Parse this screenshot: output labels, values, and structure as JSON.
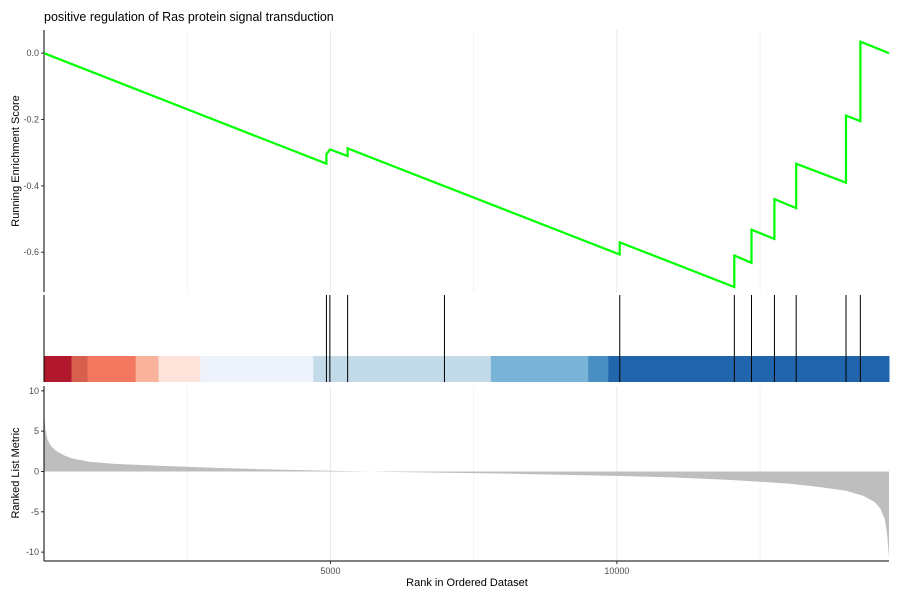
{
  "chart_data": {
    "type": "line",
    "title": "positive regulation of Ras protein signal transduction",
    "xlabel": "Rank in Ordered Dataset",
    "xlim": [
      0,
      14750
    ],
    "x_ticks": [
      5000,
      10000
    ],
    "x_tick_labels": [
      "5000",
      "10000"
    ],
    "grid": true,
    "colors": {
      "running_score": "#00ff00",
      "hits": "#000000",
      "metric_fill": "#bebebe",
      "gridline": "#ebebeb"
    },
    "panels": [
      {
        "name": "running-enrichment-score",
        "ylabel": "Running Enrichment Score",
        "ylim": [
          -0.72,
          0.07
        ],
        "y_ticks": [
          0.0,
          -0.2,
          -0.4,
          -0.6
        ],
        "y_tick_labels": [
          "0.0",
          "-0.2",
          "-0.4",
          "-0.6"
        ],
        "series": [
          {
            "x": [
              0,
              4930,
              4930,
              4990,
              4990,
              5300,
              5300,
              10050,
              10050,
              12050,
              12050,
              12350,
              12350,
              12750,
              12750,
              13130,
              13130,
              14000,
              14000,
              14250,
              14250,
              14750
            ],
            "values": [
              0.0,
              -0.333,
              -0.305,
              -0.29,
              -0.29,
              -0.31,
              -0.287,
              -0.607,
              -0.57,
              -0.705,
              -0.61,
              -0.632,
              -0.532,
              -0.56,
              -0.44,
              -0.467,
              -0.333,
              -0.39,
              -0.188,
              -0.205,
              0.035,
              0.0
            ]
          }
        ]
      },
      {
        "name": "hit-positions",
        "hits": [
          4930,
          4990,
          5300,
          6990,
          10050,
          12050,
          12350,
          12750,
          13130,
          14000,
          14250
        ],
        "rank_bands": [
          {
            "x0": 0,
            "x1": 480,
            "color": "#b2182b"
          },
          {
            "x0": 480,
            "x1": 760,
            "color": "#d6604d"
          },
          {
            "x0": 760,
            "x1": 1600,
            "color": "#f4775f"
          },
          {
            "x0": 1600,
            "x1": 2000,
            "color": "#f9b39c"
          },
          {
            "x0": 2000,
            "x1": 2730,
            "color": "#fde3d9"
          },
          {
            "x0": 2730,
            "x1": 4700,
            "color": "#eef3fb"
          },
          {
            "x0": 4700,
            "x1": 7800,
            "color": "#c3dbe9"
          },
          {
            "x0": 7800,
            "x1": 9500,
            "color": "#7ab3d8"
          },
          {
            "x0": 9500,
            "x1": 9850,
            "color": "#4a8fc4"
          },
          {
            "x0": 9850,
            "x1": 14750,
            "color": "#2166ac"
          }
        ]
      },
      {
        "name": "ranked-list-metric",
        "ylabel": "Ranked List Metric",
        "ylim": [
          -11.1,
          10.6
        ],
        "y_ticks": [
          10,
          5,
          0,
          -5,
          -10
        ],
        "y_tick_labels": [
          "10",
          "5",
          "0",
          "-5",
          "-10"
        ],
        "series": [
          {
            "x": [
              0,
              25,
              60,
              120,
              200,
              350,
              500,
              800,
              1200,
              2000,
              3000,
              4000,
              5000,
              6000,
              7000,
              8000,
              9000,
              10000,
              11000,
              12000,
              13000,
              13500,
              14000,
              14300,
              14500,
              14600,
              14680,
              14720,
              14750
            ],
            "values": [
              7.5,
              5.2,
              4.0,
              3.2,
              2.6,
              2.0,
              1.6,
              1.2,
              0.95,
              0.7,
              0.45,
              0.25,
              0.1,
              -0.05,
              -0.15,
              -0.25,
              -0.4,
              -0.55,
              -0.75,
              -1.05,
              -1.5,
              -1.9,
              -2.4,
              -3.0,
              -3.8,
              -4.6,
              -6.0,
              -8.0,
              -10.7
            ]
          }
        ]
      }
    ]
  }
}
